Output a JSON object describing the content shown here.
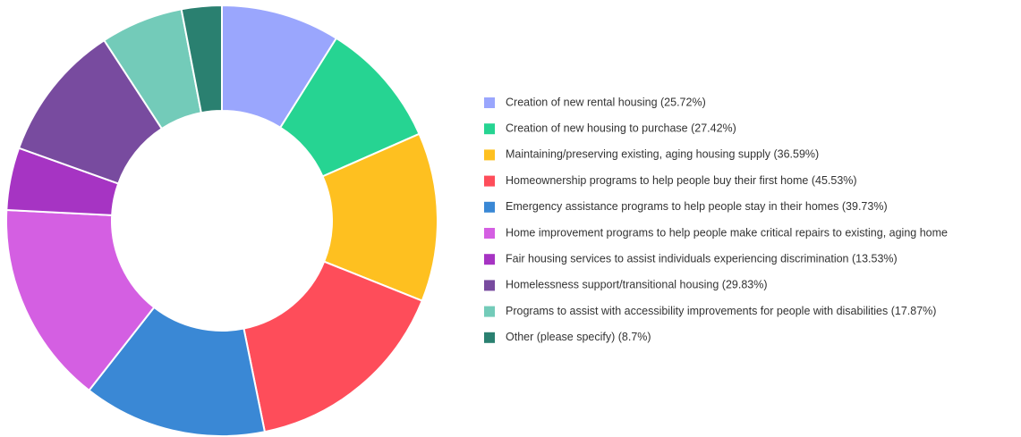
{
  "chart_data": {
    "type": "donut",
    "categories": [
      "Creation of new rental housing (25.72%)",
      "Creation of new housing to purchase (27.42%)",
      "Maintaining/preserving existing, aging housing supply (36.59%)",
      "Homeownership programs to help people buy their first home (45.53%)",
      "Emergency assistance programs to help people stay in their homes (39.73%)",
      "Home improvement programs to help people make critical repairs to existing, aging home",
      "Fair housing services to assist individuals experiencing discrimination (13.53%)",
      "Homelessness support/transitional housing (29.83%)",
      "Programs to assist with accessibility improvements for people with disabilities (17.87%)",
      "Other (please specify) (8.7%)"
    ],
    "values": [
      25.72,
      27.42,
      36.59,
      45.53,
      39.73,
      44,
      13.53,
      29.83,
      17.87,
      8.7
    ],
    "colors": [
      "#9aa6fd",
      "#26d492",
      "#fec020",
      "#fe4d5a",
      "#3a88d5",
      "#d45fe2",
      "#a634c3",
      "#784b9f",
      "#73cbb9",
      "#2a8070"
    ]
  }
}
